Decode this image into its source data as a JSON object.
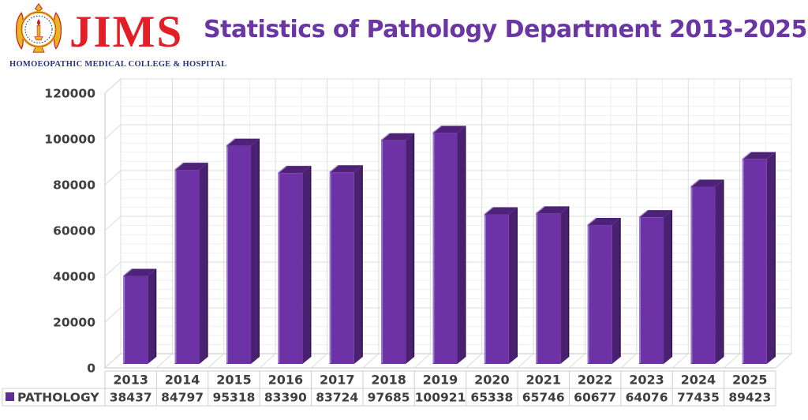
{
  "header": {
    "logo": {
      "wordmark": "JIMS",
      "tagline": "HOMOEOPATHIC MEDICAL COLLEGE & HOSPITAL"
    },
    "title": "Statistics of Pathology Department 2013-2025"
  },
  "chart_data": {
    "type": "bar",
    "style": "3d-column",
    "title": "Statistics of Pathology Department 2013-2025",
    "categories": [
      "2013",
      "2014",
      "2015",
      "2016",
      "2017",
      "2018",
      "2019",
      "2020",
      "2021",
      "2022",
      "2023",
      "2024",
      "2025"
    ],
    "series": [
      {
        "name": "PATHOLOGY",
        "values": [
          38437,
          84797,
          95318,
          83390,
          83724,
          97685,
          100921,
          65338,
          65746,
          60677,
          64076,
          77435,
          89423
        ]
      }
    ],
    "xlabel": "",
    "ylabel": "",
    "ylim": [
      0,
      120000
    ],
    "y_major_step": 20000,
    "y_minor_step": 4000,
    "grid": true,
    "legend_position": "bottom-left",
    "data_table": true
  },
  "colors": {
    "title": "#6936A3",
    "logo_red": "#E41E26",
    "logo_navy": "#283183",
    "emblem_gold": "#E9B41F",
    "emblem_red": "#C3202A",
    "emblem_blue": "#2A3A8C",
    "bar_front": "#6C32A6",
    "bar_top": "#4E2277",
    "bar_side": "#4A2170",
    "bar_side_edge": "#2F1649",
    "bar_highlight": "#A284D1",
    "grid_major": "#DCDCDC",
    "grid_minor": "#F2EDF7",
    "wall_border": "#C6C6C6",
    "table_border": "#CFCFCF",
    "text": "#3F3F3F",
    "legend_swatch": "#5F2D93",
    "background": "#FFFFFF"
  }
}
